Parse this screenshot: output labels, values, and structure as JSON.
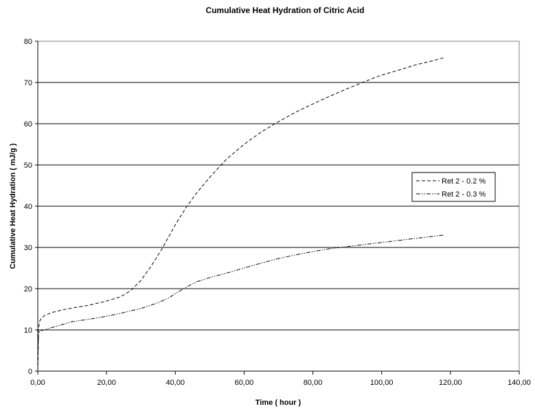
{
  "chart_data": {
    "type": "line",
    "title": "Cumulative Heat Hydration of Citric Acid",
    "xlabel": "Time ( hour )",
    "ylabel": "Cumulative Heat Hydration ( mJ/g )",
    "xlim": [
      0,
      140
    ],
    "ylim": [
      0,
      80
    ],
    "xticks": [
      0,
      20,
      40,
      60,
      80,
      100,
      120,
      140
    ],
    "xtick_labels": [
      "0,00",
      "20,00",
      "40,00",
      "60,00",
      "80,00",
      "100,00",
      "120,00",
      "140,00"
    ],
    "yticks": [
      0,
      10,
      20,
      30,
      40,
      50,
      60,
      70,
      80
    ],
    "ytick_labels": [
      "0",
      "10",
      "20",
      "30",
      "40",
      "50",
      "60",
      "70",
      "80"
    ],
    "grid": "horizontal",
    "legend_position": "right",
    "series": [
      {
        "name": "Ret 2 - 0.2 %",
        "dash": "dashed",
        "x": [
          0,
          0.2,
          0.5,
          1,
          2,
          4,
          6,
          8,
          10,
          12,
          15,
          20,
          24,
          27,
          30,
          33,
          36,
          38,
          40,
          43,
          46,
          50,
          55,
          60,
          65,
          70,
          75,
          80,
          85,
          90,
          95,
          100,
          105,
          110,
          115,
          118
        ],
        "y": [
          0,
          10,
          12,
          12.8,
          13.5,
          14.2,
          14.6,
          15,
          15.3,
          15.6,
          16,
          17,
          18,
          19.5,
          22,
          25.5,
          29.5,
          32.5,
          35.5,
          39.5,
          43,
          47,
          51.5,
          55,
          58,
          60.5,
          62.8,
          64.8,
          66.7,
          68.5,
          70.2,
          71.8,
          73,
          74.3,
          75.3,
          76
        ]
      },
      {
        "name": "Ret 2 - 0.3 %",
        "dash": "dashdotdot",
        "x": [
          0,
          0.2,
          0.5,
          1,
          3,
          5,
          8,
          10,
          15,
          20,
          25,
          30,
          35,
          38,
          40,
          43,
          46,
          50,
          55,
          60,
          65,
          70,
          75,
          80,
          85,
          90,
          95,
          100,
          105,
          110,
          115,
          118
        ],
        "y": [
          0,
          9,
          9.5,
          9.8,
          10.3,
          10.8,
          11.5,
          12,
          12.6,
          13.3,
          14.2,
          15.2,
          16.6,
          17.7,
          18.8,
          20.3,
          21.6,
          22.7,
          23.8,
          25,
          26.2,
          27.3,
          28.2,
          29,
          29.7,
          30.2,
          30.7,
          31.2,
          31.7,
          32.2,
          32.7,
          33
        ]
      }
    ]
  }
}
